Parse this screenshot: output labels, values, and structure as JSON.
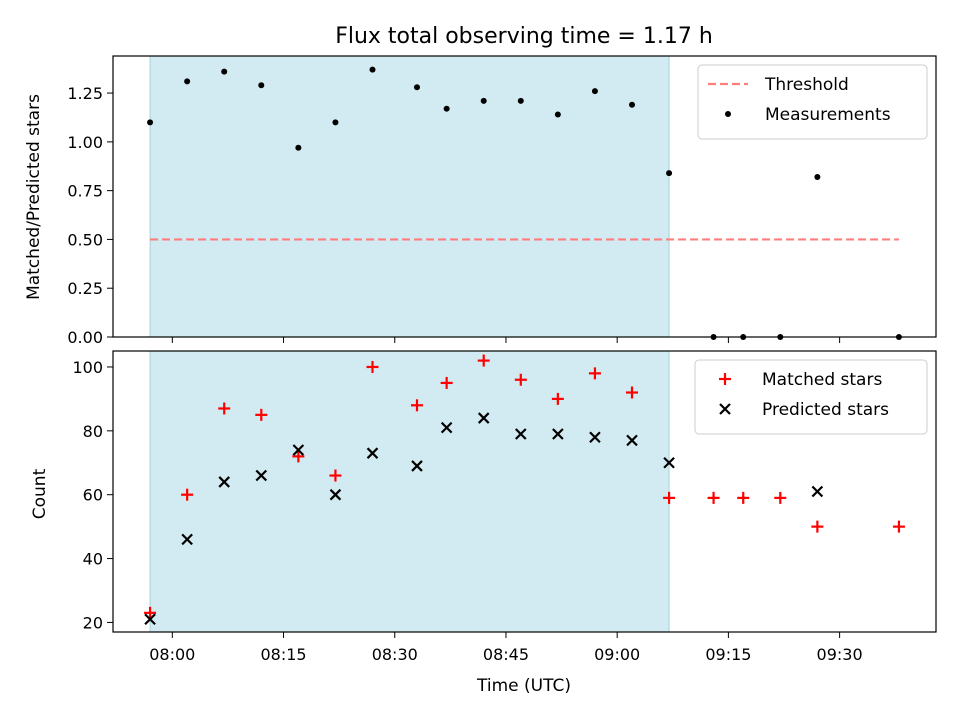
{
  "chart_data": [
    {
      "type": "scatter",
      "title": "Flux total observing time = 1.17 h",
      "ylabel": "Matched/Predicted stars",
      "xlabel": "",
      "ylim": [
        0,
        1.44
      ],
      "yticks": [
        0.0,
        0.25,
        0.5,
        0.75,
        1.0,
        1.25
      ],
      "ytick_labels": [
        "0.00",
        "0.25",
        "0.50",
        "0.75",
        "1.00",
        "1.25"
      ],
      "legend_position": "top-right",
      "threshold": {
        "name": "Threshold",
        "value": 0.5,
        "x_start": "07:57",
        "x_end": "09:38",
        "color": "#ff7f7f",
        "style": "dashed"
      },
      "highlight_span": {
        "start": "07:57",
        "end": "09:07",
        "color": "#add8e6"
      },
      "series": [
        {
          "name": "Measurements",
          "marker": "dot",
          "color": "#000000",
          "points": [
            [
              "07:57",
              1.1
            ],
            [
              "08:02",
              1.31
            ],
            [
              "08:07",
              1.36
            ],
            [
              "08:12",
              1.29
            ],
            [
              "08:17",
              0.97
            ],
            [
              "08:22",
              1.1
            ],
            [
              "08:27",
              1.37
            ],
            [
              "08:33",
              1.28
            ],
            [
              "08:37",
              1.17
            ],
            [
              "08:42",
              1.21
            ],
            [
              "08:47",
              1.21
            ],
            [
              "08:52",
              1.14
            ],
            [
              "08:57",
              1.26
            ],
            [
              "09:02",
              1.19
            ],
            [
              "09:07",
              0.84
            ],
            [
              "09:13",
              0.0
            ],
            [
              "09:17",
              0.0
            ],
            [
              "09:22",
              0.0
            ],
            [
              "09:27",
              0.82
            ],
            [
              "09:38",
              0.0
            ]
          ]
        }
      ]
    },
    {
      "type": "scatter",
      "title": "",
      "ylabel": "Count",
      "xlabel": "Time (UTC)",
      "ylim": [
        17,
        105
      ],
      "yticks": [
        20,
        40,
        60,
        80,
        100
      ],
      "ytick_labels": [
        "20",
        "40",
        "60",
        "80",
        "100"
      ],
      "xlim": [
        "07:52",
        "09:43"
      ],
      "xticks": [
        "08:00",
        "08:15",
        "08:30",
        "08:45",
        "09:00",
        "09:15",
        "09:30"
      ],
      "legend_position": "top-right",
      "highlight_span": {
        "start": "07:57",
        "end": "09:07",
        "color": "#add8e6"
      },
      "series": [
        {
          "name": "Matched stars",
          "marker": "plus",
          "color": "#ff0000",
          "points": [
            [
              "07:57",
              23
            ],
            [
              "08:02",
              60
            ],
            [
              "08:07",
              87
            ],
            [
              "08:12",
              85
            ],
            [
              "08:17",
              72
            ],
            [
              "08:22",
              66
            ],
            [
              "08:27",
              100
            ],
            [
              "08:33",
              88
            ],
            [
              "08:37",
              95
            ],
            [
              "08:42",
              102
            ],
            [
              "08:47",
              96
            ],
            [
              "08:52",
              90
            ],
            [
              "08:57",
              98
            ],
            [
              "09:02",
              92
            ],
            [
              "09:07",
              59
            ],
            [
              "09:13",
              59
            ],
            [
              "09:17",
              59
            ],
            [
              "09:22",
              59
            ],
            [
              "09:27",
              50
            ],
            [
              "09:38",
              50
            ]
          ]
        },
        {
          "name": "Predicted stars",
          "marker": "x",
          "color": "#000000",
          "points": [
            [
              "07:57",
              21
            ],
            [
              "08:02",
              46
            ],
            [
              "08:07",
              64
            ],
            [
              "08:12",
              66
            ],
            [
              "08:17",
              74
            ],
            [
              "08:22",
              60
            ],
            [
              "08:27",
              73
            ],
            [
              "08:33",
              69
            ],
            [
              "08:37",
              81
            ],
            [
              "08:42",
              84
            ],
            [
              "08:47",
              79
            ],
            [
              "08:52",
              79
            ],
            [
              "08:57",
              78
            ],
            [
              "09:02",
              77
            ],
            [
              "09:07",
              70
            ],
            [
              "09:27",
              61
            ]
          ]
        }
      ]
    }
  ]
}
